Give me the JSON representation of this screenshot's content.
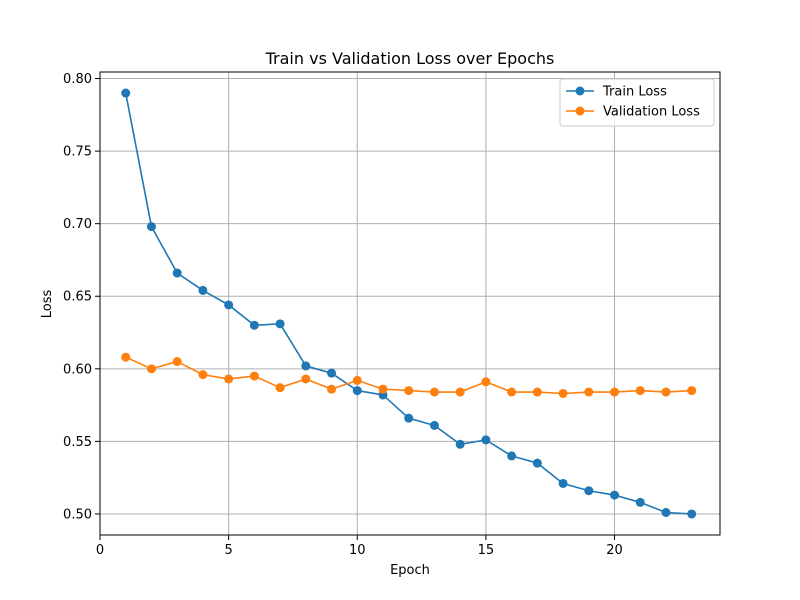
{
  "chart_data": {
    "type": "line",
    "title": "Train vs Validation Loss over Epochs",
    "xlabel": "Epoch",
    "ylabel": "Loss",
    "xlim": [
      0,
      24.1
    ],
    "ylim": [
      0.4855,
      0.8045
    ],
    "xticks": [
      0,
      5,
      10,
      15,
      20
    ],
    "xtick_labels": [
      "0",
      "5",
      "10",
      "15",
      "20"
    ],
    "yticks": [
      0.5,
      0.55,
      0.6,
      0.65,
      0.7,
      0.75,
      0.8
    ],
    "ytick_labels": [
      "0.50",
      "0.55",
      "0.60",
      "0.65",
      "0.70",
      "0.75",
      "0.80"
    ],
    "grid": true,
    "legend_position": "top-right",
    "x": [
      1,
      2,
      3,
      4,
      5,
      6,
      7,
      8,
      9,
      10,
      11,
      12,
      13,
      14,
      15,
      16,
      17,
      18,
      19,
      20,
      21,
      22,
      23
    ],
    "series": [
      {
        "name": "Train Loss",
        "color": "#1f77b4",
        "values": [
          0.79,
          0.698,
          0.666,
          0.654,
          0.644,
          0.63,
          0.631,
          0.602,
          0.597,
          0.585,
          0.582,
          0.566,
          0.561,
          0.548,
          0.551,
          0.54,
          0.535,
          0.521,
          0.516,
          0.513,
          0.508,
          0.501,
          0.5
        ]
      },
      {
        "name": "Validation Loss",
        "color": "#ff7f0e",
        "values": [
          0.608,
          0.6,
          0.605,
          0.596,
          0.593,
          0.595,
          0.587,
          0.593,
          0.586,
          0.592,
          0.586,
          0.585,
          0.584,
          0.584,
          0.591,
          0.584,
          0.584,
          0.583,
          0.584,
          0.584,
          0.585,
          0.584,
          0.585
        ]
      }
    ]
  }
}
